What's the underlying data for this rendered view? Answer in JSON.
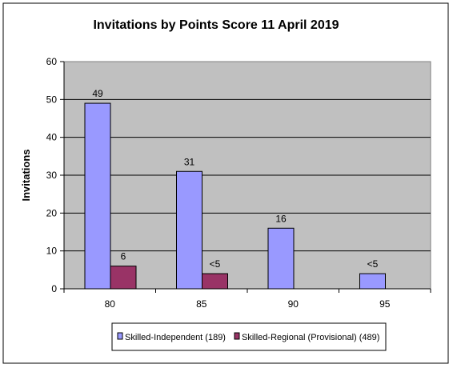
{
  "chart_data": {
    "type": "bar",
    "title": "Invitations by Points Score 11 April 2019",
    "xlabel": "",
    "ylabel": "Invitations",
    "categories": [
      "80",
      "85",
      "90",
      "95"
    ],
    "ylim": [
      0,
      60
    ],
    "yticks": [
      0,
      10,
      20,
      30,
      40,
      50,
      60
    ],
    "grid": true,
    "legend_position": "bottom",
    "series": [
      {
        "name": "Skilled-Independent (189)",
        "color": "#9999ff",
        "values": [
          49,
          31,
          16,
          4
        ],
        "labels": [
          "49",
          "31",
          "16",
          "<5"
        ]
      },
      {
        "name": "Skilled-Regional (Provisional) (489)",
        "color": "#993366",
        "values": [
          6,
          4,
          null,
          null
        ],
        "labels": [
          "6",
          "<5",
          "",
          ""
        ]
      }
    ]
  }
}
